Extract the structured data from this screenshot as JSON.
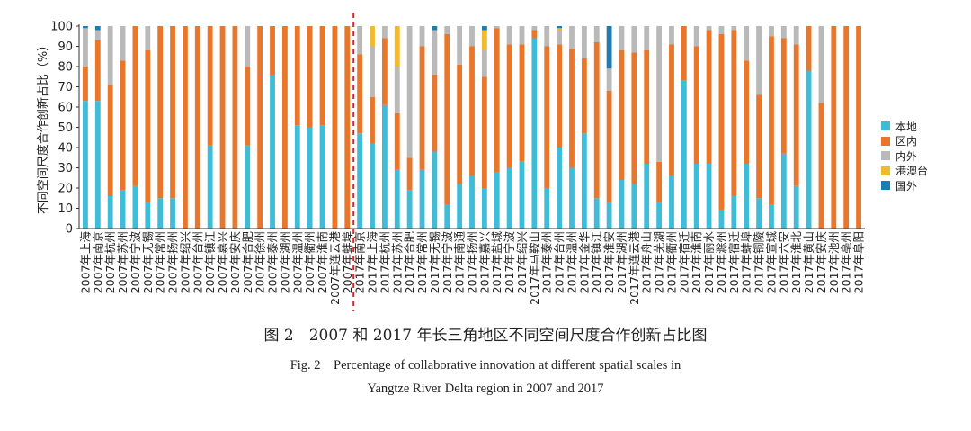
{
  "chart_data": {
    "type": "bar",
    "stacked": true,
    "title": "",
    "ylabel": "不同空间尺度合作创新占比（%）",
    "xlabel": "",
    "ylim": [
      0,
      100
    ],
    "yticks": [
      0,
      10,
      20,
      30,
      40,
      50,
      60,
      70,
      80,
      90,
      100
    ],
    "divider_after_category": "2007年蚌埠",
    "legend_position": "right",
    "categories": [
      "2007年上海",
      "2007年南京",
      "2007年杭州",
      "2007年苏州",
      "2007年宁波",
      "2007年无锡",
      "2007年常州",
      "2007年扬州",
      "2007年绍兴",
      "2007年台州",
      "2007年镇江",
      "2007年嘉兴",
      "2007年安庆",
      "2007年合肥",
      "2007年徐州",
      "2007年泰州",
      "2007年湖州",
      "2007年温州",
      "2007年衢州",
      "2007年淮南",
      "2007年连云港",
      "2007年蚌埠",
      "2017年南京",
      "2017年上海",
      "2017年杭州",
      "2017年苏州",
      "2017年合肥",
      "2017年常州",
      "2017年无锡",
      "2017年宁波",
      "2017年南通",
      "2017年扬州",
      "2017年嘉兴",
      "2017年盐城",
      "2017年宁波",
      "2017年绍兴",
      "2017年马鞍山",
      "2017年泰州",
      "2017年台州",
      "2017年温州",
      "2017年金华",
      "2017年镇江",
      "2017年淮安",
      "2017年湖州",
      "2017年连云港",
      "2017年舟山",
      "2017年芜湖",
      "2017年衢州",
      "2017年宿迁",
      "2017年淮南",
      "2017年丽水",
      "2017年滁州",
      "2017年宿迁",
      "2017年蚌埠",
      "2017年铜陵",
      "2017年宣城",
      "2017年六安",
      "2017年淮北",
      "2017年黄山",
      "2017年安庆",
      "2017年池州",
      "2017年亳州",
      "2017年阜阳"
    ],
    "series": [
      {
        "name": "本地",
        "color": "#3fbcd8",
        "values": [
          63,
          63,
          16,
          19,
          21,
          13,
          15,
          15,
          0,
          0,
          41,
          0,
          0,
          41,
          0,
          76,
          0,
          51,
          50,
          51,
          0,
          0,
          47,
          42,
          61,
          29,
          19,
          29,
          38,
          12,
          22,
          26,
          20,
          28,
          30,
          33,
          94,
          20,
          40,
          30,
          47,
          15,
          13,
          24,
          22,
          32,
          13,
          26,
          73,
          32,
          32,
          9,
          16,
          32,
          15,
          12,
          37,
          21,
          78,
          0,
          0,
          0,
          0
        ]
      },
      {
        "name": "区内",
        "color": "#e8772b",
        "values": [
          17,
          30,
          55,
          64,
          79,
          75,
          85,
          85,
          100,
          100,
          59,
          100,
          100,
          39,
          100,
          24,
          100,
          49,
          50,
          49,
          100,
          100,
          39,
          23,
          33,
          28,
          16,
          61,
          38,
          84,
          59,
          64,
          55,
          71,
          61,
          58,
          4,
          70,
          51,
          59,
          37,
          77,
          55,
          64,
          65,
          56,
          20,
          65,
          27,
          58,
          66,
          87,
          82,
          51,
          51,
          83,
          57,
          70,
          22,
          62,
          100,
          100,
          100
        ]
      },
      {
        "name": "内外",
        "color": "#b9b9b9",
        "values": [
          19,
          5,
          29,
          17,
          0,
          12,
          0,
          0,
          0,
          0,
          0,
          0,
          0,
          20,
          0,
          0,
          0,
          0,
          0,
          0,
          0,
          0,
          14,
          25,
          6,
          23,
          65,
          10,
          22,
          4,
          19,
          10,
          13,
          1,
          9,
          9,
          2,
          10,
          7,
          11,
          16,
          8,
          11,
          12,
          13,
          12,
          67,
          9,
          0,
          10,
          2,
          4,
          2,
          17,
          34,
          5,
          6,
          9,
          0,
          38,
          0,
          0,
          0
        ]
      },
      {
        "name": "港澳台",
        "color": "#f3b92e",
        "values": [
          0,
          0,
          0,
          0,
          0,
          0,
          0,
          0,
          0,
          0,
          0,
          0,
          0,
          0,
          0,
          0,
          0,
          0,
          0,
          0,
          0,
          0,
          0,
          10,
          0,
          20,
          0,
          0,
          0,
          0,
          0,
          0,
          10,
          0,
          0,
          0,
          0,
          0,
          1,
          0,
          0,
          0,
          0,
          0,
          0,
          0,
          0,
          0,
          0,
          0,
          0,
          0,
          0,
          0,
          0,
          0,
          0,
          0,
          0,
          0,
          0,
          0,
          0
        ]
      },
      {
        "name": "国外",
        "color": "#1a7eb5",
        "values": [
          1,
          2,
          0,
          0,
          0,
          0,
          0,
          0,
          0,
          0,
          0,
          0,
          0,
          0,
          0,
          0,
          0,
          0,
          0,
          0,
          0,
          0,
          0,
          0,
          0,
          0,
          0,
          0,
          2,
          0,
          0,
          0,
          2,
          0,
          0,
          0,
          0,
          0,
          1,
          0,
          0,
          0,
          21,
          0,
          0,
          0,
          0,
          0,
          0,
          0,
          0,
          0,
          0,
          0,
          0,
          0,
          0,
          0,
          0,
          0,
          0,
          0,
          0
        ]
      }
    ]
  },
  "captions": {
    "cn": "图 2　2007 和 2017 年长三角地区不同空间尺度合作创新占比图",
    "en1": "Fig. 2　Percentage of collaborative innovation at different spatial scales in",
    "en2": "Yangtze River Delta region in 2007 and 2017"
  }
}
